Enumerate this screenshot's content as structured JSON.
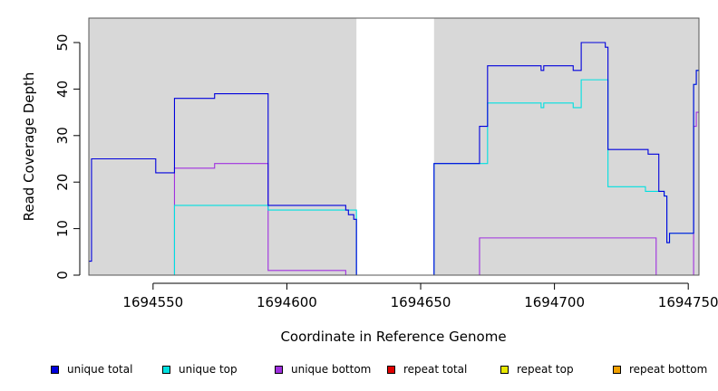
{
  "chart_data": {
    "type": "line",
    "title": "",
    "xlabel": "Coordinate in Reference Genome",
    "ylabel": "Read Coverage Depth",
    "xlim": [
      1694526,
      1694754
    ],
    "ylim": [
      0,
      55
    ],
    "x_ticks": [
      1694550,
      1694600,
      1694650,
      1694700,
      1694750
    ],
    "x_tick_labels": [
      "1694550",
      "1694600",
      "1694650",
      "1694700",
      "1694750"
    ],
    "y_ticks": [
      0,
      10,
      20,
      30,
      40,
      50
    ],
    "y_tick_labels": [
      "0",
      "10",
      "20",
      "30",
      "40",
      "50"
    ],
    "shaded_regions": [
      [
        1694526,
        1694626
      ],
      [
        1694655,
        1694754
      ]
    ],
    "shade_color": "#d8d8d8",
    "legend_position": "bottom",
    "series": [
      {
        "name": "unique total",
        "color": "#0000dd",
        "step_points": [
          [
            1694526,
            3
          ],
          [
            1694527,
            25
          ],
          [
            1694551,
            22
          ],
          [
            1694558,
            38
          ],
          [
            1694573,
            39
          ],
          [
            1694593,
            15
          ],
          [
            1694622,
            14
          ],
          [
            1694623,
            13
          ],
          [
            1694625,
            12
          ],
          [
            1694626,
            0
          ],
          [
            1694655,
            24
          ],
          [
            1694672,
            32
          ],
          [
            1694675,
            45
          ],
          [
            1694695,
            44
          ],
          [
            1694696,
            45
          ],
          [
            1694707,
            44
          ],
          [
            1694710,
            50
          ],
          [
            1694719,
            49
          ],
          [
            1694720,
            27
          ],
          [
            1694735,
            26
          ],
          [
            1694739,
            18
          ],
          [
            1694741,
            17
          ],
          [
            1694742,
            7
          ],
          [
            1694743,
            9
          ],
          [
            1694752,
            41
          ],
          [
            1694753,
            44
          ]
        ]
      },
      {
        "name": "unique top",
        "color": "#00e0e0",
        "step_points": [
          [
            1694526,
            0
          ],
          [
            1694558,
            15
          ],
          [
            1694593,
            14
          ],
          [
            1694626,
            0
          ],
          [
            1694655,
            24
          ],
          [
            1694675,
            37
          ],
          [
            1694695,
            36
          ],
          [
            1694696,
            37
          ],
          [
            1694707,
            36
          ],
          [
            1694710,
            42
          ],
          [
            1694720,
            19
          ],
          [
            1694734,
            18
          ],
          [
            1694741,
            17
          ],
          [
            1694742,
            7
          ],
          [
            1694743,
            9
          ],
          [
            1694752,
            41
          ],
          [
            1694753,
            44
          ]
        ]
      },
      {
        "name": "unique bottom",
        "color": "#a030e0",
        "step_points": [
          [
            1694526,
            0
          ],
          [
            1694558,
            23
          ],
          [
            1694573,
            24
          ],
          [
            1694593,
            1
          ],
          [
            1694622,
            0
          ],
          [
            1694672,
            8
          ],
          [
            1694738,
            0
          ],
          [
            1694752,
            32
          ],
          [
            1694753,
            35
          ]
        ]
      },
      {
        "name": "repeat total",
        "color": "#e00000",
        "step_points": []
      },
      {
        "name": "repeat top",
        "color": "#e8e800",
        "step_points": []
      },
      {
        "name": "repeat bottom",
        "color": "#f0a000",
        "step_points": [
          [
            1694526,
            0
          ],
          [
            1694754,
            0
          ]
        ]
      }
    ]
  }
}
